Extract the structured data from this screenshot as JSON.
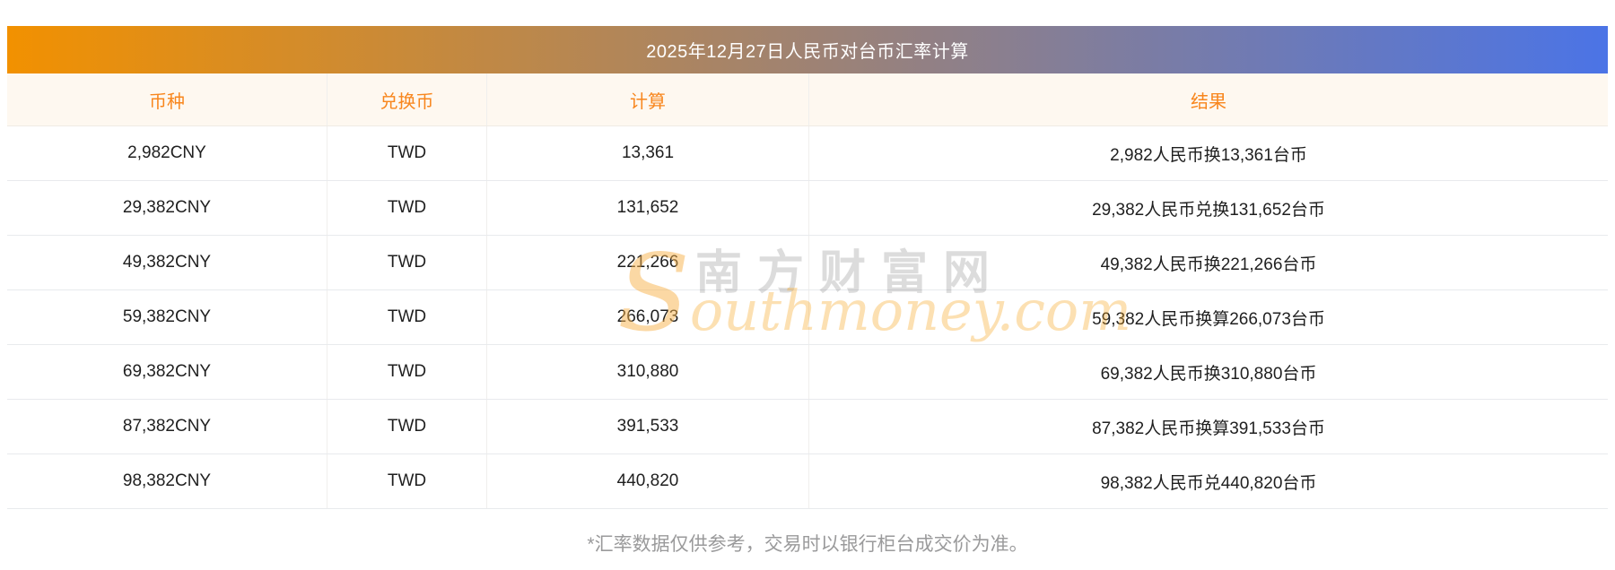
{
  "page": {
    "title": "2025年12月27日人民币对台币汇率计算",
    "footnote": "*汇率数据仅供参考，交易时以银行柜台成交价为准。"
  },
  "colors": {
    "banner_gradient_start": "#F29100",
    "banner_gradient_end": "#4B74E6",
    "banner_text": "#FFFFFF",
    "header_bg": "#FEF8F0",
    "header_text": "#F8861D",
    "row_text": "#1F1F1F",
    "row_border": "#E8EAED",
    "footnote_text": "#9A9A9B",
    "watermark_orange": "#F5A623"
  },
  "table": {
    "columns": [
      {
        "key": "currency",
        "label": "币种"
      },
      {
        "key": "target",
        "label": "兑换币"
      },
      {
        "key": "calc",
        "label": "计算"
      },
      {
        "key": "result",
        "label": "结果"
      }
    ],
    "rows": [
      {
        "currency": "2,982CNY",
        "target": "TWD",
        "calc": "13,361",
        "result": "2,982人民币换13,361台币"
      },
      {
        "currency": "29,382CNY",
        "target": "TWD",
        "calc": "131,652",
        "result": "29,382人民币兑换131,652台币"
      },
      {
        "currency": "49,382CNY",
        "target": "TWD",
        "calc": "221,266",
        "result": "49,382人民币换221,266台币"
      },
      {
        "currency": "59,382CNY",
        "target": "TWD",
        "calc": "266,073",
        "result": "59,382人民币换算266,073台币"
      },
      {
        "currency": "69,382CNY",
        "target": "TWD",
        "calc": "310,880",
        "result": "69,382人民币换310,880台币"
      },
      {
        "currency": "87,382CNY",
        "target": "TWD",
        "calc": "391,533",
        "result": "87,382人民币换算391,533台币"
      },
      {
        "currency": "98,382CNY",
        "target": "TWD",
        "calc": "440,820",
        "result": "98,382人民币兑440,820台币"
      }
    ]
  },
  "watermark": {
    "cjk": "南方财富网",
    "latin_initial": "S",
    "latin_rest": "outhmoney.com"
  }
}
